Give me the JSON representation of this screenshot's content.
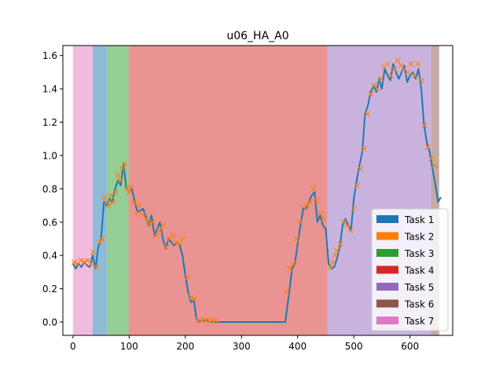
{
  "chart_data": {
    "type": "line",
    "title": "u06_HA_A0",
    "xlabel": "",
    "ylabel": "",
    "xlim": [
      -18,
      676
    ],
    "ylim": [
      -0.08,
      1.66
    ],
    "xticks": [
      0,
      100,
      200,
      300,
      400,
      500,
      600
    ],
    "xtick_labels": [
      "0",
      "100",
      "200",
      "300",
      "400",
      "500",
      "600"
    ],
    "yticks": [
      0.0,
      0.2,
      0.4,
      0.6,
      0.8,
      1.0,
      1.2,
      1.4,
      1.6
    ],
    "ytick_labels": [
      "0.0",
      "0.2",
      "0.4",
      "0.6",
      "0.8",
      "1.0",
      "1.2",
      "1.4",
      "1.6"
    ],
    "grid": false,
    "legend_position": "lower-right",
    "task_spans": [
      {
        "task": "Task 7",
        "start": 0,
        "end": 35,
        "color": "#e377c2"
      },
      {
        "task": "Task 1",
        "start": 35,
        "end": 60,
        "color": "#1f77b4"
      },
      {
        "task": "Task 3",
        "start": 60,
        "end": 99,
        "color": "#2ca02c"
      },
      {
        "task": "Task 4",
        "start": 99,
        "end": 453,
        "color": "#d62728"
      },
      {
        "task": "Task 5",
        "start": 453,
        "end": 638,
        "color": "#9467bd"
      },
      {
        "task": "Task 6",
        "start": 638,
        "end": 652,
        "color": "#8c564b"
      }
    ],
    "legend": [
      {
        "label": "Task 1",
        "color": "#1f77b4"
      },
      {
        "label": "Task 2",
        "color": "#ff7f0e"
      },
      {
        "label": "Task 3",
        "color": "#2ca02c"
      },
      {
        "label": "Task 4",
        "color": "#d62728"
      },
      {
        "label": "Task 5",
        "color": "#9467bd"
      },
      {
        "label": "Task 6",
        "color": "#8c564b"
      },
      {
        "label": "Task 7",
        "color": "#e377c2"
      }
    ],
    "series": [
      {
        "color": "#1f77b4",
        "x": [
          0,
          5,
          10,
          15,
          20,
          25,
          30,
          35,
          40,
          45,
          50,
          55,
          60,
          65,
          70,
          75,
          80,
          85,
          90,
          95,
          100,
          105,
          110,
          115,
          120,
          125,
          130,
          135,
          140,
          145,
          150,
          155,
          160,
          165,
          170,
          175,
          180,
          185,
          190,
          195,
          200,
          205,
          210,
          215,
          220,
          225,
          230,
          235,
          240,
          245,
          250,
          255,
          260,
          300,
          350,
          378,
          385,
          390,
          395,
          400,
          405,
          410,
          415,
          420,
          425,
          430,
          435,
          440,
          445,
          450,
          455,
          460,
          465,
          470,
          475,
          480,
          485,
          490,
          495,
          500,
          505,
          510,
          515,
          520,
          525,
          530,
          535,
          540,
          545,
          550,
          555,
          560,
          565,
          570,
          575,
          580,
          585,
          590,
          595,
          600,
          605,
          610,
          615,
          620,
          625,
          630,
          635,
          640,
          645,
          650,
          655
        ],
        "y": [
          0.35,
          0.32,
          0.35,
          0.33,
          0.36,
          0.34,
          0.33,
          0.4,
          0.32,
          0.45,
          0.5,
          0.72,
          0.7,
          0.74,
          0.72,
          0.8,
          0.85,
          0.82,
          0.95,
          0.8,
          0.78,
          0.8,
          0.72,
          0.66,
          0.67,
          0.68,
          0.63,
          0.58,
          0.64,
          0.52,
          0.56,
          0.6,
          0.5,
          0.44,
          0.5,
          0.48,
          0.46,
          0.48,
          0.46,
          0.4,
          0.28,
          0.18,
          0.12,
          0.13,
          0.02,
          0.0,
          0.01,
          0.01,
          0.01,
          0.0,
          0.0,
          0.0,
          0.0,
          0.0,
          0.0,
          0.0,
          0.18,
          0.32,
          0.35,
          0.47,
          0.58,
          0.68,
          0.68,
          0.72,
          0.76,
          0.78,
          0.6,
          0.64,
          0.58,
          0.56,
          0.35,
          0.32,
          0.33,
          0.38,
          0.45,
          0.58,
          0.62,
          0.58,
          0.55,
          0.74,
          0.85,
          0.94,
          1.02,
          1.25,
          1.3,
          1.38,
          1.42,
          1.38,
          1.46,
          1.4,
          1.52,
          1.48,
          1.45,
          1.55,
          1.5,
          1.46,
          1.5,
          1.54,
          1.44,
          1.48,
          1.5,
          1.46,
          1.52,
          1.4,
          1.18,
          1.08,
          1.02,
          0.92,
          0.83,
          0.72,
          0.75
        ]
      }
    ],
    "markers": {
      "name": "Task 2",
      "color": "#ff7f0e",
      "symbol": "x",
      "x": [
        2,
        8,
        14,
        20,
        26,
        32,
        36,
        42,
        48,
        52,
        56,
        60,
        64,
        68,
        72,
        76,
        80,
        84,
        88,
        92,
        96,
        100,
        104,
        108,
        112,
        118,
        124,
        130,
        136,
        142,
        148,
        154,
        160,
        166,
        172,
        178,
        184,
        190,
        196,
        204,
        210,
        216,
        224,
        230,
        236,
        242,
        248,
        254,
        380,
        386,
        392,
        398,
        404,
        410,
        416,
        422,
        428,
        434,
        440,
        446,
        458,
        462,
        466,
        470,
        476,
        482,
        488,
        494,
        500,
        506,
        512,
        518,
        524,
        530,
        536,
        542,
        548,
        554,
        560,
        566,
        572,
        578,
        584,
        590,
        596,
        602,
        608,
        614,
        620,
        626,
        632,
        638,
        644
      ],
      "y": [
        0.36,
        0.35,
        0.37,
        0.36,
        0.37,
        0.35,
        0.42,
        0.33,
        0.48,
        0.5,
        0.75,
        0.72,
        0.7,
        0.76,
        0.72,
        0.78,
        0.88,
        0.85,
        0.92,
        0.95,
        0.8,
        0.78,
        0.81,
        0.72,
        0.65,
        0.7,
        0.64,
        0.62,
        0.59,
        0.6,
        0.52,
        0.55,
        0.58,
        0.45,
        0.5,
        0.52,
        0.48,
        0.47,
        0.5,
        0.27,
        0.15,
        0.14,
        0.01,
        0.01,
        0.01,
        0.01,
        0.01,
        0.01,
        0.18,
        0.32,
        0.35,
        0.5,
        0.6,
        0.69,
        0.7,
        0.72,
        0.8,
        0.73,
        0.65,
        0.62,
        0.33,
        0.36,
        0.4,
        0.43,
        0.47,
        0.6,
        0.58,
        0.55,
        0.68,
        0.82,
        0.92,
        1.04,
        1.25,
        1.37,
        1.42,
        1.4,
        1.46,
        1.53,
        1.55,
        1.48,
        1.52,
        1.57,
        1.54,
        1.52,
        1.5,
        1.55,
        1.48,
        1.55,
        1.45,
        1.18,
        1.05,
        0.98,
        0.94
      ]
    }
  }
}
